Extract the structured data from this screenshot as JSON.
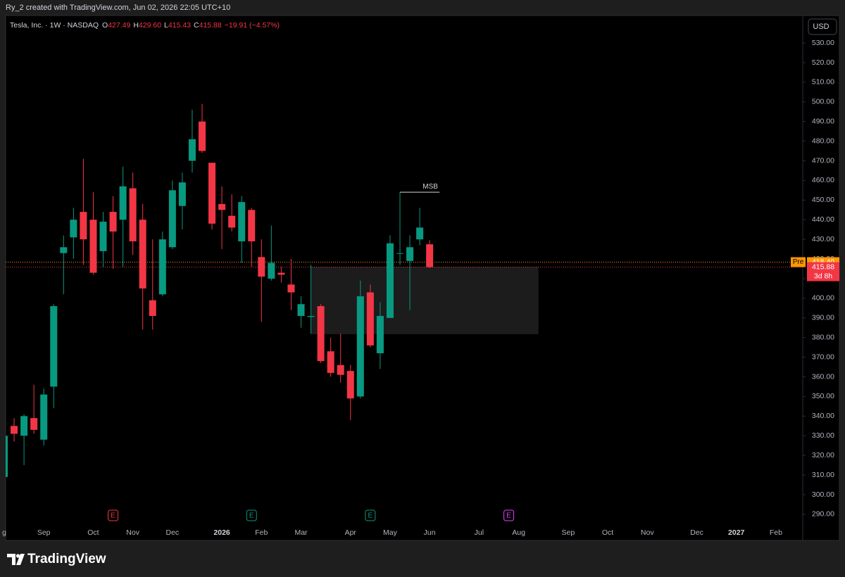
{
  "header": {
    "credit": "Ry_2 created with TradingView.com, Jun 02, 2026 22:05 UTC+10"
  },
  "chart_data": {
    "type": "candlestick",
    "legend": {
      "symbol": "Tesla, Inc. · 1W · NASDAQ",
      "fields": [
        {
          "key": "O",
          "value": "427.49"
        },
        {
          "key": "H",
          "value": "429.60"
        },
        {
          "key": "L",
          "value": "415.43"
        },
        {
          "key": "C",
          "value": "415.88"
        }
      ],
      "change": "−19.91 (−4.57%)"
    },
    "currency": "USD",
    "up_color": "#089981",
    "down_color": "#f23645",
    "grid": false,
    "categories": [
      "g",
      null,
      null,
      null,
      "Sep",
      null,
      null,
      null,
      null,
      "Oct",
      null,
      null,
      null,
      "Nov",
      null,
      null,
      null,
      "Dec",
      null,
      null,
      null,
      null,
      "2026",
      null,
      null,
      null,
      "Feb",
      null,
      null,
      null,
      "Mar",
      null,
      null,
      null,
      null,
      "Apr",
      null,
      null,
      null,
      "May",
      null,
      null,
      null,
      "Jun",
      null,
      null,
      null,
      null,
      "Jul",
      null,
      null,
      null,
      "Aug",
      null,
      null,
      null,
      null,
      "Sep",
      null,
      null,
      null,
      "Oct",
      null,
      null,
      null,
      "Nov",
      null,
      null,
      null,
      null,
      "Dec",
      null,
      null,
      null,
      "2027",
      null,
      null,
      null,
      "Feb",
      null,
      null
    ],
    "open": [
      309,
      335,
      330,
      339,
      328,
      355,
      423,
      431,
      444,
      440,
      424,
      444,
      440,
      456,
      440,
      399,
      402,
      426,
      447,
      470,
      490,
      469,
      448,
      442,
      429,
      445,
      421,
      410,
      413,
      407,
      391,
      390.5,
      396,
      373,
      366,
      363,
      350,
      403,
      372,
      390,
      423,
      419,
      430,
      427.49,
      null,
      null,
      null,
      null,
      null,
      null,
      null,
      null,
      null,
      null,
      null,
      null,
      null,
      null,
      null,
      null,
      null,
      null,
      null,
      null,
      null,
      null,
      null,
      null,
      null,
      null,
      null,
      null,
      null,
      null,
      null,
      null,
      null,
      null,
      null,
      null,
      null
    ],
    "high": [
      331,
      339,
      341,
      356,
      354,
      397,
      432,
      446,
      471,
      454,
      444,
      452,
      467,
      464,
      448,
      430,
      434,
      460,
      464,
      496,
      499,
      469,
      457,
      453,
      452,
      446,
      430,
      437,
      416,
      420,
      401,
      417,
      397,
      380,
      382,
      366,
      409,
      407,
      398,
      432,
      454,
      432,
      446,
      429.6,
      null,
      null,
      null,
      null,
      null,
      null,
      null,
      null,
      null,
      null,
      null,
      null,
      null,
      null,
      null,
      null,
      null,
      null,
      null,
      null,
      null,
      null,
      null,
      null,
      null,
      null,
      null,
      null,
      null,
      null,
      null,
      null,
      null,
      null,
      null,
      null,
      null
    ],
    "low": [
      308,
      327,
      315,
      331,
      325,
      344,
      402,
      420,
      417,
      412,
      416,
      415,
      416,
      422,
      384,
      384,
      401,
      425,
      435,
      464,
      474,
      435,
      425,
      434,
      418,
      416,
      388,
      409,
      408,
      394,
      385,
      382,
      367,
      360,
      357,
      338,
      349,
      375,
      364,
      390,
      417,
      394,
      427,
      415.43,
      null,
      null,
      null,
      null,
      null,
      null,
      null,
      null,
      null,
      null,
      null,
      null,
      null,
      null,
      null,
      null,
      null,
      null,
      null,
      null,
      null,
      null,
      null,
      null,
      null,
      null,
      null,
      null,
      null,
      null,
      null,
      null,
      null,
      null,
      null,
      null,
      null
    ],
    "close": [
      330,
      331,
      340,
      333,
      351,
      396,
      426,
      440,
      430,
      413,
      439,
      434,
      457,
      429,
      405,
      391,
      430,
      455,
      459,
      481,
      475,
      438,
      445,
      436,
      449,
      429,
      411,
      418,
      412,
      403,
      397,
      391,
      368,
      362,
      361,
      349,
      401,
      376,
      391,
      428,
      423,
      426,
      436,
      415.88,
      null,
      null,
      null,
      null,
      null,
      null,
      null,
      null,
      null,
      null,
      null,
      null,
      null,
      null,
      null,
      null,
      null,
      null,
      null,
      null,
      null,
      null,
      null,
      null,
      null,
      null,
      null,
      null,
      null,
      null,
      null,
      null,
      null,
      null,
      null,
      null,
      null
    ],
    "ylim": [
      276.7,
      544
    ],
    "yticks": [
      {
        "value": 290,
        "label": "290.00"
      },
      {
        "value": 300,
        "label": "300.00"
      },
      {
        "value": 310,
        "label": "310.00"
      },
      {
        "value": 320,
        "label": "320.00"
      },
      {
        "value": 330,
        "label": "330.00"
      },
      {
        "value": 340,
        "label": "340.00"
      },
      {
        "value": 350,
        "label": "350.00"
      },
      {
        "value": 360,
        "label": "360.00"
      },
      {
        "value": 370,
        "label": "370.00"
      },
      {
        "value": 380,
        "label": "380.00"
      },
      {
        "value": 390,
        "label": "390.00"
      },
      {
        "value": 400,
        "label": "400.00"
      },
      {
        "value": 410,
        "label": "410.00"
      },
      {
        "value": 420,
        "label": "420.00"
      },
      {
        "value": 430,
        "label": "430.00"
      },
      {
        "value": 440,
        "label": "440.00"
      },
      {
        "value": 450,
        "label": "450.00"
      },
      {
        "value": 460,
        "label": "460.00"
      },
      {
        "value": 470,
        "label": "470.00"
      },
      {
        "value": 480,
        "label": "480.00"
      },
      {
        "value": 490,
        "label": "490.00"
      },
      {
        "value": 500,
        "label": "500.00"
      },
      {
        "value": 510,
        "label": "510.00"
      },
      {
        "value": 520,
        "label": "520.00"
      },
      {
        "value": 530,
        "label": "530.00"
      }
    ],
    "msb": {
      "label": "MSB",
      "level": 454,
      "from": 40,
      "to": 44
    },
    "zone": {
      "from": 31,
      "to": 54,
      "top": 416,
      "bottom": 381.7
    },
    "pre_market": {
      "tag": "Pre",
      "price": {
        "value": 418.4,
        "label": "418.40"
      },
      "color": "#ff9800"
    },
    "last": {
      "price": 415.88,
      "countdown": "3d 8h"
    },
    "earnings": [
      {
        "slot": 11,
        "label": "E",
        "color": "#f23645"
      },
      {
        "slot": 25,
        "label": "E",
        "color": "#089981"
      },
      {
        "slot": 37,
        "label": "E",
        "color": "#089981"
      },
      {
        "slot": 51,
        "label": "E",
        "color": "#e040fb"
      }
    ]
  },
  "footer": {
    "brand": "TradingView"
  }
}
